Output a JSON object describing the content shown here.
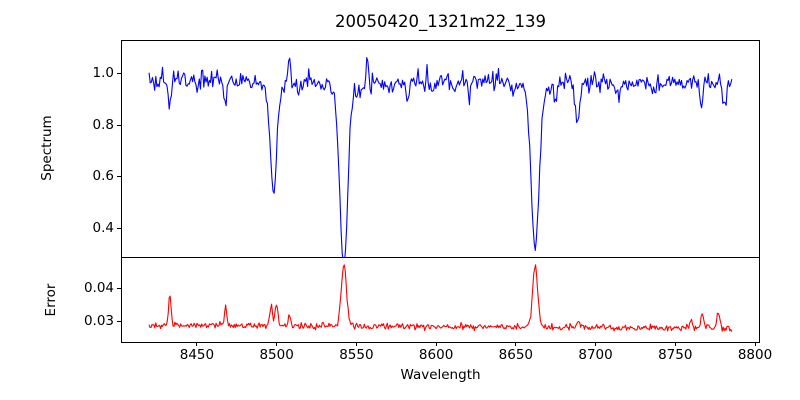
{
  "title": "20050420_1321m22_139",
  "colors": {
    "spectrum_line": "#0000ff",
    "error_line": "#ff0000",
    "axis": "#000000",
    "background": "#ffffff"
  },
  "x_axis": {
    "label": "Wavelength",
    "ticks": [
      {
        "value": 8450,
        "label": "8450"
      },
      {
        "value": 8500,
        "label": "8500"
      },
      {
        "value": 8550,
        "label": "8550"
      },
      {
        "value": 8600,
        "label": "8600"
      },
      {
        "value": 8650,
        "label": "8650"
      },
      {
        "value": 8700,
        "label": "8700"
      },
      {
        "value": 8750,
        "label": "8750"
      },
      {
        "value": 8800,
        "label": "8800"
      }
    ],
    "xlim": [
      8403,
      8802.5
    ]
  },
  "chart_data": [
    {
      "type": "line",
      "panel": "top",
      "series_name": "Spectrum",
      "ylabel": "Spectrum",
      "color": "#0000ff",
      "x_range": [
        8420,
        8786
      ],
      "sample_step": 0.7,
      "ylim": [
        0.2885,
        1.123
      ],
      "yticks": [
        {
          "value": 1.0,
          "label": "1.0"
        },
        {
          "value": 0.8,
          "label": "0.8"
        },
        {
          "value": 0.6,
          "label": "0.6"
        },
        {
          "value": 0.4,
          "label": "0.4"
        }
      ],
      "continuum_level": 0.965,
      "noise_sigma": 0.018,
      "continuum_wobble_amp": 0.006,
      "absorption_lines": [
        {
          "center": 8433.0,
          "depth": 0.1,
          "sigma": 1.0
        },
        {
          "center": 8468.0,
          "depth": 0.085,
          "sigma": 1.0
        },
        {
          "center": 8498.0,
          "depth": 0.405,
          "sigma": 1.9,
          "min_flux": 0.56
        },
        {
          "center": 8514.0,
          "depth": 0.05,
          "sigma": 1.0
        },
        {
          "center": 8542.1,
          "depth": 0.65,
          "sigma": 2.4,
          "min_flux": 0.32
        },
        {
          "center": 8582.0,
          "depth": 0.06,
          "sigma": 1.0
        },
        {
          "center": 8598.0,
          "depth": 0.05,
          "sigma": 1.0
        },
        {
          "center": 8611.0,
          "depth": 0.055,
          "sigma": 1.0
        },
        {
          "center": 8621.0,
          "depth": 0.06,
          "sigma": 1.0
        },
        {
          "center": 8648.0,
          "depth": 0.05,
          "sigma": 1.0
        },
        {
          "center": 8662.1,
          "depth": 0.61,
          "sigma": 2.4,
          "min_flux": 0.36
        },
        {
          "center": 8675.0,
          "depth": 0.08,
          "sigma": 1.0
        },
        {
          "center": 8688.6,
          "depth": 0.155,
          "sigma": 1.4,
          "min_flux": 0.81
        },
        {
          "center": 8713.0,
          "depth": 0.06,
          "sigma": 1.0
        },
        {
          "center": 8736.0,
          "depth": 0.05,
          "sigma": 1.0
        },
        {
          "center": 8766.0,
          "depth": 0.085,
          "sigma": 1.2
        },
        {
          "center": 8781.0,
          "depth": 0.095,
          "sigma": 1.2
        }
      ],
      "emission_spikes": [
        {
          "center": 8508.0,
          "height": 0.125,
          "sigma": 0.8
        },
        {
          "center": 8557.0,
          "height": 0.1,
          "sigma": 0.8
        }
      ]
    },
    {
      "type": "line",
      "panel": "bottom",
      "series_name": "Error",
      "ylabel": "Error",
      "color": "#ff0000",
      "x_range": [
        8420,
        8786
      ],
      "sample_step": 0.6,
      "ylim": [
        0.0238,
        0.0488
      ],
      "yticks": [
        {
          "value": 0.04,
          "label": "0.04"
        },
        {
          "value": 0.03,
          "label": "0.03"
        }
      ],
      "baseline_start": 0.0288,
      "baseline_end": 0.0279,
      "noise_sigma": 0.00045,
      "peaks": [
        {
          "center": 8433.0,
          "amp": 0.009,
          "sigma": 0.8
        },
        {
          "center": 8468.0,
          "amp": 0.0055,
          "sigma": 0.8
        },
        {
          "center": 8496.5,
          "amp": 0.0058,
          "sigma": 0.9
        },
        {
          "center": 8499.8,
          "amp": 0.0068,
          "sigma": 0.9
        },
        {
          "center": 8508.0,
          "amp": 0.003,
          "sigma": 0.7
        },
        {
          "center": 8542.1,
          "amp": 0.0185,
          "sigma": 1.6,
          "peak_value": 0.047
        },
        {
          "center": 8662.1,
          "amp": 0.0183,
          "sigma": 1.6,
          "peak_value": 0.047
        },
        {
          "center": 8689.0,
          "amp": 0.0016,
          "sigma": 0.9
        },
        {
          "center": 8760.0,
          "amp": 0.0026,
          "sigma": 0.9
        },
        {
          "center": 8767.0,
          "amp": 0.0045,
          "sigma": 0.9
        },
        {
          "center": 8777.0,
          "amp": 0.0048,
          "sigma": 0.9
        },
        {
          "center": 8785.5,
          "amp": -0.0012,
          "sigma": 1.0
        }
      ]
    }
  ]
}
